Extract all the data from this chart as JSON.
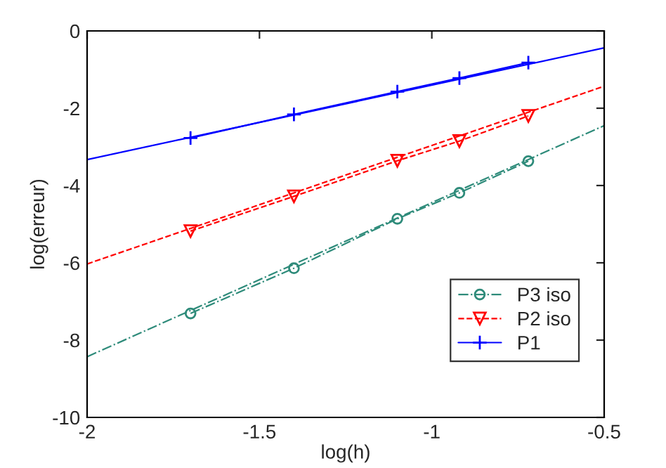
{
  "chart_data": {
    "type": "line",
    "xlabel": "log(h)",
    "ylabel": "log(erreur)",
    "xlim": [
      -2,
      -0.5
    ],
    "xticks": [
      -2,
      -1.5,
      -1,
      -0.5
    ],
    "ylim": [
      -10,
      0
    ],
    "yticks": [
      -10,
      -8,
      -6,
      -4,
      -2,
      0
    ],
    "grid": false,
    "legend": "bottom right",
    "series": [
      {
        "name": "P3 iso",
        "color": "#2e8b7a",
        "marker": "circle",
        "line_style": "dashdot",
        "x": [
          -1.7,
          -1.4,
          -1.1,
          -0.92,
          -0.72
        ],
        "values": [
          -7.31,
          -6.14,
          -4.86,
          -4.19,
          -3.37
        ]
      },
      {
        "name": "P2 iso",
        "color": "#ff0000",
        "marker": "triangle",
        "line_style": "dashed",
        "x": [
          -1.7,
          -1.4,
          -1.1,
          -0.92,
          -0.72
        ],
        "values": [
          -5.18,
          -4.28,
          -3.36,
          -2.85,
          -2.2
        ]
      },
      {
        "name": "P1",
        "color": "#0000ff",
        "marker": "cross",
        "line_style": "solid",
        "x": [
          -1.7,
          -1.4,
          -1.1,
          -0.92,
          -0.72
        ],
        "values": [
          -2.77,
          -2.16,
          -1.57,
          -1.22,
          -0.82
        ]
      },
      {
        "color": "#2e8b7a",
        "marker": "none",
        "line_style": "dashdot",
        "x": [
          -2,
          -0.5
        ],
        "values": [
          -8.43,
          -2.45
        ]
      },
      {
        "color": "#ff0000",
        "marker": "none",
        "line_style": "dashed",
        "x": [
          -2,
          -0.5
        ],
        "values": [
          -6.03,
          -1.43
        ]
      },
      {
        "color": "#0000ff",
        "marker": "none",
        "line_style": "solid",
        "x": [
          -2,
          -0.5
        ],
        "values": [
          -3.33,
          -0.44
        ]
      }
    ]
  }
}
